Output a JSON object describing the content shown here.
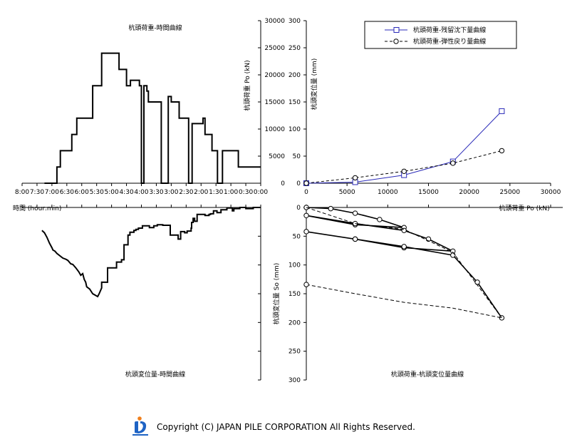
{
  "copyright": {
    "text": "Copyright (C) JAPAN PILE CORPORATION All Rights Reserved.",
    "logo_colors": {
      "blue": "#1e63c4",
      "orange": "#f07f1c"
    }
  },
  "chart_data": [
    {
      "id": "load-time",
      "type": "line",
      "title": "杭頭荷重-時間曲線",
      "ylabel": "杭頭荷重  Po  (kN)",
      "xlabel": "時間  (hour:min)",
      "x_unit": "elapsed minutes (axis reversed, 0:00 at right)",
      "xlim": [
        0,
        480
      ],
      "ylim": [
        0,
        30000
      ],
      "x_reversed": true,
      "x_ticks": [
        "0:00",
        "0:30",
        "1:00",
        "1:30",
        "2:00",
        "2:30",
        "3:00",
        "3:30",
        "4:00",
        "4:30",
        "5:00",
        "5:30",
        "6:00",
        "6:30",
        "7:00",
        "7:30",
        "8:00"
      ],
      "y_ticks": [
        0,
        5000,
        10000,
        15000,
        20000,
        25000,
        30000
      ],
      "series": [
        {
          "color": "#000000",
          "style": "solid",
          "x": [
            0,
            45,
            45,
            77,
            77,
            87,
            87,
            98,
            98,
            112,
            112,
            116,
            116,
            138,
            138,
            145,
            145,
            164,
            164,
            180,
            180,
            186,
            186,
            200,
            200,
            226,
            226,
            229,
            229,
            235,
            235,
            240,
            240,
            244,
            244,
            262,
            262,
            270,
            270,
            285,
            285,
            295,
            295,
            320,
            320,
            338,
            338,
            370,
            370,
            380,
            380,
            403,
            403,
            410,
            410,
            418,
            420,
            435
          ],
          "y": [
            3000,
            3000,
            6000,
            6000,
            0,
            0,
            6000,
            6000,
            9000,
            9000,
            12000,
            12000,
            11000,
            11000,
            0,
            0,
            12000,
            12000,
            15000,
            15000,
            16000,
            16000,
            0,
            0,
            15000,
            15000,
            17000,
            17000,
            18000,
            18000,
            0,
            0,
            18000,
            18000,
            19000,
            19000,
            18000,
            18000,
            21000,
            21000,
            24000,
            24000,
            24000,
            24000,
            18000,
            18000,
            12000,
            12000,
            9000,
            9000,
            6000,
            6000,
            3000,
            3000,
            0,
            0,
            0,
            0
          ]
        }
      ]
    },
    {
      "id": "load-settlement",
      "type": "line",
      "ylabel": "杭頭変位量  (mm)",
      "xlabel": "杭頭荷重  Po  (kN)",
      "xlim": [
        0,
        30000
      ],
      "ylim": [
        0,
        300
      ],
      "x_ticks": [
        0,
        5000,
        10000,
        15000,
        20000,
        25000,
        30000
      ],
      "y_ticks": [
        0,
        50,
        100,
        150,
        200,
        250,
        300
      ],
      "legend_position": "top-right",
      "series": [
        {
          "name": "杭頭荷重-残留沈下量曲線",
          "color": "#2a2ab8",
          "style": "solid",
          "marker": "square",
          "x": [
            0,
            6000,
            12000,
            18000,
            24000
          ],
          "y": [
            0,
            2,
            15,
            40,
            133
          ]
        },
        {
          "name": "杭頭荷重-弾性戻り量曲線",
          "color": "#000000",
          "style": "dashed",
          "marker": "circle",
          "x": [
            0,
            6000,
            12000,
            18000,
            24000
          ],
          "y": [
            0,
            10,
            22,
            37,
            60
          ]
        }
      ]
    },
    {
      "id": "settlement-time",
      "type": "line",
      "title": "杭頭変位量-時間曲線",
      "x_unit": "elapsed minutes (axis reversed, 0:00 at right)",
      "xlim": [
        0,
        480
      ],
      "ylim": [
        0,
        300
      ],
      "y_reversed": true,
      "series": [
        {
          "color": "#000000",
          "style": "solid",
          "x": [
            0,
            15,
            15,
            30,
            30,
            42,
            42,
            54,
            54,
            57,
            57,
            68,
            68,
            80,
            80,
            88,
            88,
            95,
            95,
            101,
            101,
            104,
            104,
            112,
            112,
            128,
            128,
            133,
            133,
            136,
            136,
            139,
            139,
            140,
            140,
            148,
            148,
            153,
            153,
            161,
            161,
            166,
            166,
            182,
            182,
            197,
            197,
            208,
            208,
            215,
            215,
            224,
            224,
            238,
            238,
            246,
            246,
            251,
            251,
            255,
            255,
            263,
            263,
            267,
            267,
            275,
            275,
            280,
            280,
            290,
            290,
            308,
            308,
            320,
            320,
            325,
            328,
            338,
            344,
            350,
            352,
            355,
            358,
            362,
            366,
            372,
            378,
            382,
            388,
            392,
            398,
            410,
            414,
            418,
            420,
            425,
            430,
            435,
            440
          ],
          "y": [
            0,
            0,
            2,
            2,
            0,
            0,
            2,
            2,
            6,
            6,
            1,
            1,
            4,
            4,
            9,
            9,
            6,
            6,
            11,
            11,
            12,
            12,
            14,
            14,
            12,
            12,
            24,
            24,
            19,
            19,
            26,
            26,
            36,
            36,
            41,
            41,
            44,
            44,
            42,
            42,
            55,
            55,
            48,
            48,
            31,
            31,
            30,
            30,
            32,
            32,
            35,
            35,
            32,
            32,
            36,
            36,
            38,
            38,
            40,
            40,
            43,
            43,
            48,
            48,
            65,
            65,
            91,
            91,
            95,
            95,
            105,
            105,
            130,
            130,
            140,
            150,
            155,
            150,
            142,
            138,
            130,
            125,
            115,
            118,
            112,
            105,
            99,
            98,
            92,
            90,
            88,
            80,
            76,
            74,
            70,
            62,
            52,
            44,
            40
          ]
        }
      ]
    },
    {
      "id": "settlement-load",
      "type": "line",
      "title": "杭頭荷重-杭頭変位量曲線",
      "ylabel": "杭頭変位量  So  (mm)",
      "xlim": [
        0,
        30000
      ],
      "ylim": [
        0,
        300
      ],
      "y_reversed": true,
      "y_ticks": [
        0,
        50,
        100,
        150,
        200,
        250,
        300
      ],
      "series": [
        {
          "color": "#000000",
          "style": "solid",
          "marker": "circle",
          "x": [
            0,
            3000,
            6000,
            9000,
            12000,
            6000,
            0,
            6000,
            12000,
            15000,
            18000,
            12000,
            6000,
            0,
            6000,
            12000,
            18000,
            21000,
            24000
          ],
          "y": [
            0,
            2,
            10,
            21,
            35,
            30,
            14,
            28,
            40,
            55,
            76,
            70,
            55,
            42,
            55,
            68,
            83,
            130,
            192
          ]
        },
        {
          "color": "#000000",
          "style": "dashed",
          "x": [
            0,
            6000,
            12000,
            18000,
            24000
          ],
          "y": [
            0,
            28,
            38,
            78,
            192
          ]
        },
        {
          "color": "#000000",
          "style": "dashed",
          "x": [
            0,
            6000,
            12000,
            18000,
            24000
          ],
          "y": [
            134,
            150,
            165,
            175,
            192
          ]
        }
      ]
    }
  ]
}
